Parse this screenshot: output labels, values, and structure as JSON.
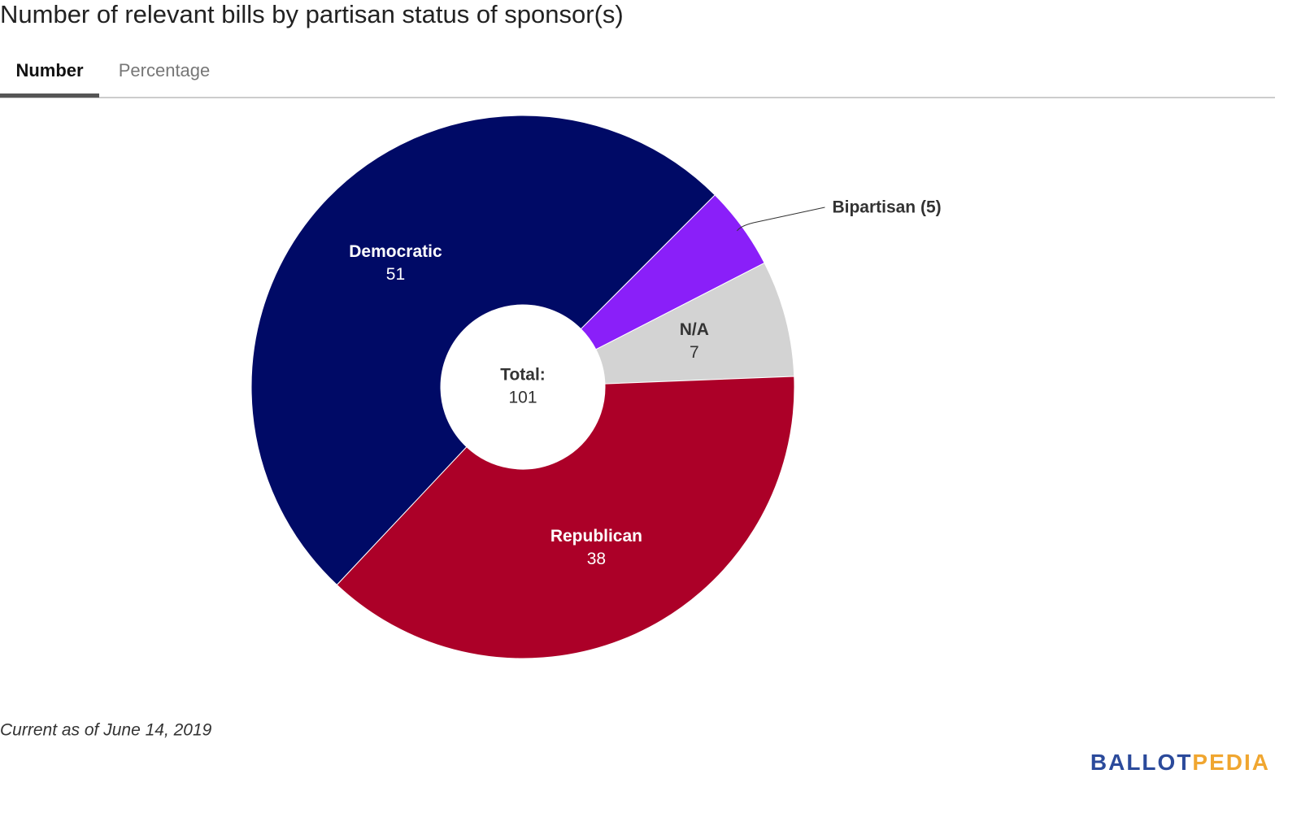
{
  "title": "Number of relevant bills by partisan status of sponsor(s)",
  "tabs": [
    "Number",
    "Percentage"
  ],
  "chart_data": {
    "type": "pie",
    "categories": [
      "Bipartisan",
      "N/A",
      "Republican",
      "Democratic"
    ],
    "values": [
      5,
      7,
      38,
      51
    ],
    "value_labels": [
      "Bipartisan (5)",
      "7",
      "38",
      "51"
    ],
    "colors": [
      "#8a1ff9",
      "#d3d3d3",
      "#ac0028",
      "#000a66"
    ],
    "center_label": "Total:",
    "center_value": 101
  },
  "footnote": "Current as of June 14, 2019",
  "brand": [
    "BALLOT",
    "PEDIA"
  ]
}
